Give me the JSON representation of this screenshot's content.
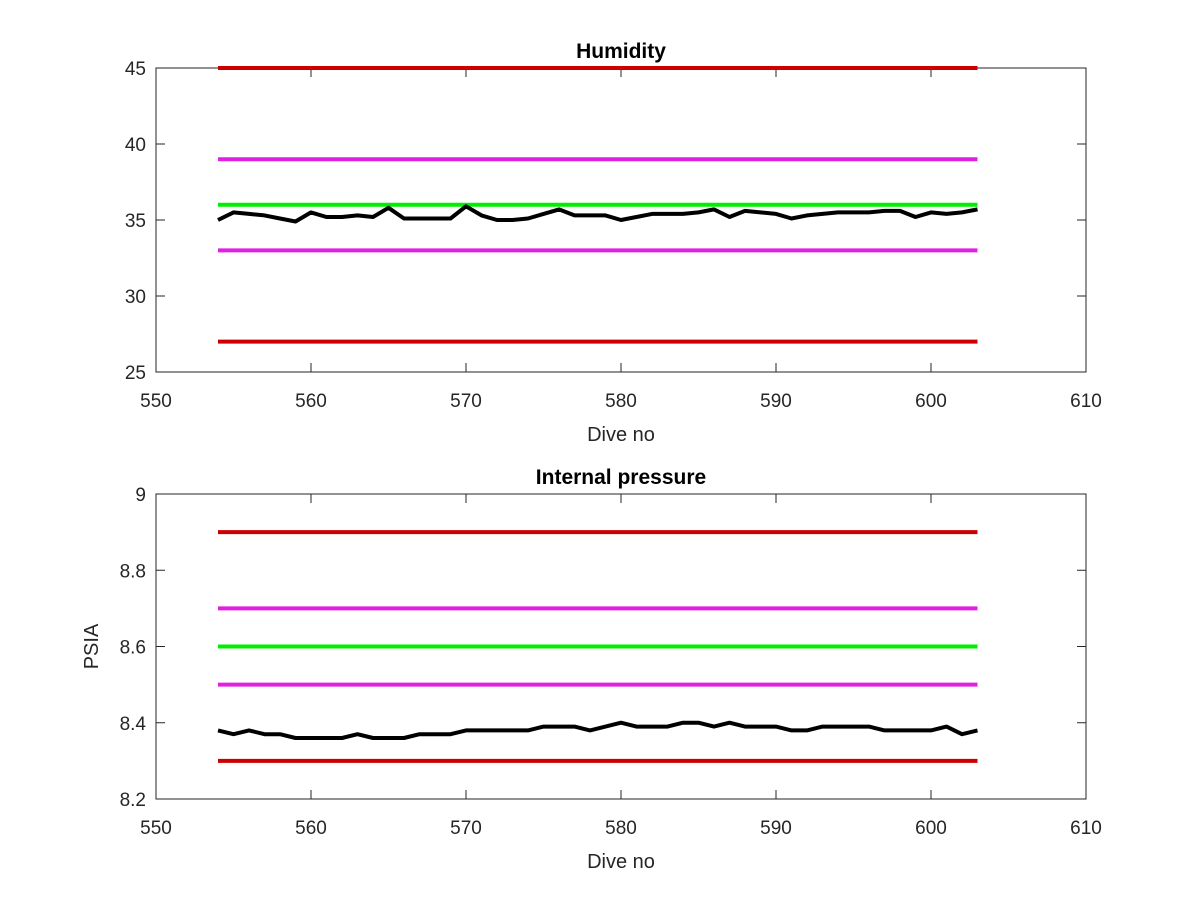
{
  "chart_data": [
    {
      "type": "line",
      "title": "Humidity",
      "xlabel": "Dive no",
      "ylabel": "",
      "xlim": [
        550,
        610
      ],
      "ylim": [
        25,
        45
      ],
      "xticks": [
        550,
        560,
        570,
        580,
        590,
        600,
        610
      ],
      "yticks": [
        25,
        30,
        35,
        40,
        45
      ],
      "grid": false,
      "series": [
        {
          "color": "#cc0000",
          "x": [
            554,
            603
          ],
          "values": [
            45,
            45
          ]
        },
        {
          "color": "#e020e0",
          "x": [
            554,
            603
          ],
          "values": [
            39,
            39
          ]
        },
        {
          "color": "#00ee00",
          "x": [
            554,
            603
          ],
          "values": [
            36,
            36
          ]
        },
        {
          "color": "#e020e0",
          "x": [
            554,
            603
          ],
          "values": [
            33,
            33
          ]
        },
        {
          "color": "#cc0000",
          "x": [
            554,
            603
          ],
          "values": [
            27,
            27
          ]
        },
        {
          "color": "#000000",
          "x": [
            554,
            555,
            556,
            557,
            558,
            559,
            560,
            561,
            562,
            563,
            564,
            565,
            566,
            567,
            568,
            569,
            570,
            571,
            572,
            573,
            574,
            575,
            576,
            577,
            578,
            579,
            580,
            581,
            582,
            583,
            584,
            585,
            586,
            587,
            588,
            589,
            590,
            591,
            592,
            593,
            594,
            595,
            596,
            597,
            598,
            599,
            600,
            601,
            602,
            603
          ],
          "values": [
            35.0,
            35.5,
            35.4,
            35.3,
            35.1,
            34.9,
            35.5,
            35.2,
            35.2,
            35.3,
            35.2,
            35.8,
            35.1,
            35.1,
            35.1,
            35.1,
            35.9,
            35.3,
            35.0,
            35.0,
            35.1,
            35.4,
            35.7,
            35.3,
            35.3,
            35.3,
            35.0,
            35.2,
            35.4,
            35.4,
            35.4,
            35.5,
            35.7,
            35.2,
            35.6,
            35.5,
            35.4,
            35.1,
            35.3,
            35.4,
            35.5,
            35.5,
            35.5,
            35.6,
            35.6,
            35.2,
            35.5,
            35.4,
            35.5,
            35.7
          ]
        }
      ]
    },
    {
      "type": "line",
      "title": "Internal pressure",
      "xlabel": "Dive no",
      "ylabel": "PSIA",
      "xlim": [
        550,
        610
      ],
      "ylim": [
        8.2,
        9
      ],
      "xticks": [
        550,
        560,
        570,
        580,
        590,
        600,
        610
      ],
      "yticks": [
        8.2,
        8.4,
        8.6,
        8.8,
        9
      ],
      "grid": false,
      "series": [
        {
          "color": "#cc0000",
          "x": [
            554,
            603
          ],
          "values": [
            8.9,
            8.9
          ]
        },
        {
          "color": "#e020e0",
          "x": [
            554,
            603
          ],
          "values": [
            8.7,
            8.7
          ]
        },
        {
          "color": "#00ee00",
          "x": [
            554,
            603
          ],
          "values": [
            8.6,
            8.6
          ]
        },
        {
          "color": "#e020e0",
          "x": [
            554,
            603
          ],
          "values": [
            8.5,
            8.5
          ]
        },
        {
          "color": "#cc0000",
          "x": [
            554,
            603
          ],
          "values": [
            8.3,
            8.3
          ]
        },
        {
          "color": "#000000",
          "x": [
            554,
            555,
            556,
            557,
            558,
            559,
            560,
            561,
            562,
            563,
            564,
            565,
            566,
            567,
            568,
            569,
            570,
            571,
            572,
            573,
            574,
            575,
            576,
            577,
            578,
            579,
            580,
            581,
            582,
            583,
            584,
            585,
            586,
            587,
            588,
            589,
            590,
            591,
            592,
            593,
            594,
            595,
            596,
            597,
            598,
            599,
            600,
            601,
            602,
            603
          ],
          "values": [
            8.38,
            8.37,
            8.38,
            8.37,
            8.37,
            8.36,
            8.36,
            8.36,
            8.36,
            8.37,
            8.36,
            8.36,
            8.36,
            8.37,
            8.37,
            8.37,
            8.38,
            8.38,
            8.38,
            8.38,
            8.38,
            8.39,
            8.39,
            8.39,
            8.38,
            8.39,
            8.4,
            8.39,
            8.39,
            8.39,
            8.4,
            8.4,
            8.39,
            8.4,
            8.39,
            8.39,
            8.39,
            8.38,
            8.38,
            8.39,
            8.39,
            8.39,
            8.39,
            8.38,
            8.38,
            8.38,
            8.38,
            8.39,
            8.37,
            8.38
          ]
        }
      ]
    }
  ]
}
